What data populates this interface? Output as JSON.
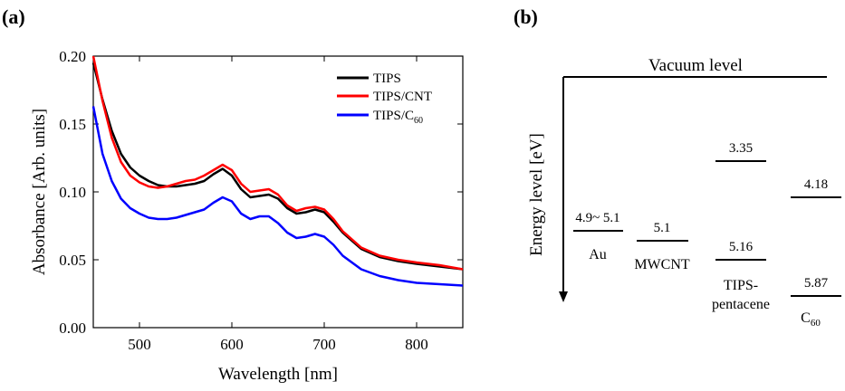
{
  "panel_a": {
    "label": "(a)"
  },
  "panel_b": {
    "label": "(b)",
    "vacuum_label": "Vacuum level",
    "energy_axis_label": "Energy level [eV]",
    "levels": [
      {
        "value": "4.9~ 5.1",
        "name": "Au"
      },
      {
        "value": "5.1",
        "name": "MWCNT"
      },
      {
        "value": "3.35",
        "name": ""
      },
      {
        "value": "5.16",
        "name_line1": "TIPS-",
        "name_line2": "pentacene"
      },
      {
        "value": "4.18",
        "name": ""
      },
      {
        "value": "5.87",
        "name": "C",
        "name_sub": "60"
      }
    ]
  },
  "chart_data": [
    {
      "type": "line",
      "xlabel": "Wavelength [nm]",
      "ylabel": "Absorbance [Arb. units]",
      "xlim": [
        450,
        850
      ],
      "ylim": [
        0.0,
        0.2
      ],
      "xticks": [
        "500",
        "600",
        "700",
        "800"
      ],
      "yticks": [
        "0.00",
        "0.05",
        "0.10",
        "0.15",
        "0.20"
      ],
      "legend_position": "top-right",
      "series": [
        {
          "name": "TIPS",
          "color": "#000000",
          "x": [
            450,
            460,
            470,
            480,
            490,
            500,
            510,
            520,
            530,
            540,
            550,
            560,
            570,
            580,
            590,
            600,
            610,
            620,
            630,
            640,
            650,
            660,
            670,
            680,
            690,
            700,
            710,
            720,
            740,
            760,
            780,
            800,
            825,
            850
          ],
          "y": [
            0.195,
            0.168,
            0.145,
            0.128,
            0.118,
            0.112,
            0.108,
            0.105,
            0.104,
            0.104,
            0.105,
            0.106,
            0.108,
            0.113,
            0.117,
            0.112,
            0.102,
            0.096,
            0.097,
            0.098,
            0.095,
            0.088,
            0.084,
            0.085,
            0.087,
            0.085,
            0.078,
            0.07,
            0.058,
            0.052,
            0.049,
            0.047,
            0.045,
            0.043
          ]
        },
        {
          "name": "TIPS/CNT",
          "color": "#ff0000",
          "x": [
            450,
            460,
            470,
            480,
            490,
            500,
            510,
            520,
            530,
            540,
            550,
            560,
            570,
            580,
            590,
            600,
            610,
            620,
            630,
            640,
            650,
            660,
            670,
            680,
            690,
            700,
            710,
            720,
            740,
            760,
            780,
            800,
            825,
            850
          ],
          "y": [
            0.2,
            0.167,
            0.14,
            0.122,
            0.112,
            0.107,
            0.104,
            0.103,
            0.104,
            0.106,
            0.108,
            0.109,
            0.112,
            0.116,
            0.12,
            0.116,
            0.106,
            0.1,
            0.101,
            0.102,
            0.098,
            0.09,
            0.086,
            0.088,
            0.089,
            0.087,
            0.08,
            0.071,
            0.059,
            0.053,
            0.05,
            0.048,
            0.046,
            0.043
          ]
        },
        {
          "name": "TIPS/C",
          "name_sub": "60",
          "color": "#0000ff",
          "x": [
            450,
            460,
            470,
            480,
            490,
            500,
            510,
            520,
            530,
            540,
            550,
            560,
            570,
            580,
            590,
            600,
            610,
            620,
            630,
            640,
            650,
            660,
            670,
            680,
            690,
            700,
            710,
            720,
            740,
            760,
            780,
            800,
            825,
            850
          ],
          "y": [
            0.163,
            0.128,
            0.108,
            0.095,
            0.088,
            0.084,
            0.081,
            0.08,
            0.08,
            0.081,
            0.083,
            0.085,
            0.087,
            0.092,
            0.096,
            0.093,
            0.084,
            0.08,
            0.082,
            0.082,
            0.077,
            0.07,
            0.066,
            0.067,
            0.069,
            0.067,
            0.061,
            0.053,
            0.043,
            0.038,
            0.035,
            0.033,
            0.032,
            0.031
          ]
        }
      ]
    },
    {
      "type": "diagram",
      "title": "",
      "axis_label": "Energy level [eV]",
      "top_label": "Vacuum level"
    }
  ]
}
